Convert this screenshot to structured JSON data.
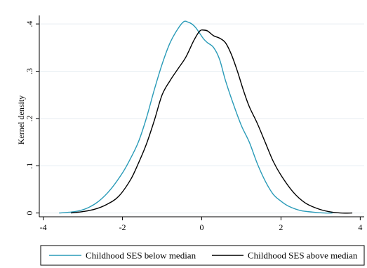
{
  "chart_data": {
    "type": "line",
    "title": "",
    "xlabel": "",
    "ylabel": "Kernel density",
    "xlim": [
      -4.1,
      4.1
    ],
    "ylim": [
      -0.008,
      0.418
    ],
    "x_ticks": [
      -4,
      -2,
      0,
      2,
      4
    ],
    "x_tick_labels": [
      "-4",
      "-2",
      "0",
      "2",
      "4"
    ],
    "y_ticks": [
      0,
      0.1,
      0.2,
      0.3,
      0.4
    ],
    "y_tick_labels": [
      "0",
      ".1",
      ".2",
      ".3",
      ".4"
    ],
    "grid": true,
    "legend_position": "bottom",
    "series": [
      {
        "name": "Childhood SES below median",
        "color": "#2a9bb8",
        "x": [
          -3.6,
          -3.2,
          -2.9,
          -2.6,
          -2.3,
          -2.0,
          -1.8,
          -1.6,
          -1.4,
          -1.2,
          -1.0,
          -0.8,
          -0.6,
          -0.45,
          -0.35,
          -0.25,
          -0.15,
          -0.05,
          0.05,
          0.15,
          0.3,
          0.45,
          0.6,
          0.8,
          1.0,
          1.2,
          1.4,
          1.6,
          1.8,
          2.0,
          2.2,
          2.5,
          2.8,
          3.1,
          3.3
        ],
        "y": [
          0.0,
          0.003,
          0.01,
          0.025,
          0.05,
          0.085,
          0.115,
          0.15,
          0.2,
          0.26,
          0.315,
          0.36,
          0.39,
          0.405,
          0.404,
          0.4,
          0.392,
          0.38,
          0.368,
          0.36,
          0.35,
          0.325,
          0.28,
          0.23,
          0.185,
          0.15,
          0.105,
          0.068,
          0.04,
          0.025,
          0.014,
          0.005,
          0.002,
          0.0,
          0.0
        ]
      },
      {
        "name": "Childhood SES above median",
        "color": "#000000",
        "x": [
          -3.3,
          -3.0,
          -2.7,
          -2.4,
          -2.1,
          -1.8,
          -1.6,
          -1.4,
          -1.2,
          -1.0,
          -0.8,
          -0.6,
          -0.4,
          -0.2,
          -0.05,
          0.05,
          0.15,
          0.3,
          0.45,
          0.6,
          0.75,
          0.9,
          1.05,
          1.2,
          1.4,
          1.6,
          1.8,
          2.0,
          2.3,
          2.6,
          2.9,
          3.2,
          3.5,
          3.8
        ],
        "y": [
          0.0,
          0.003,
          0.008,
          0.018,
          0.035,
          0.07,
          0.105,
          0.145,
          0.195,
          0.25,
          0.28,
          0.305,
          0.33,
          0.365,
          0.385,
          0.387,
          0.385,
          0.375,
          0.37,
          0.36,
          0.335,
          0.3,
          0.26,
          0.225,
          0.19,
          0.15,
          0.11,
          0.08,
          0.045,
          0.022,
          0.01,
          0.003,
          0.0,
          0.0
        ]
      }
    ]
  }
}
